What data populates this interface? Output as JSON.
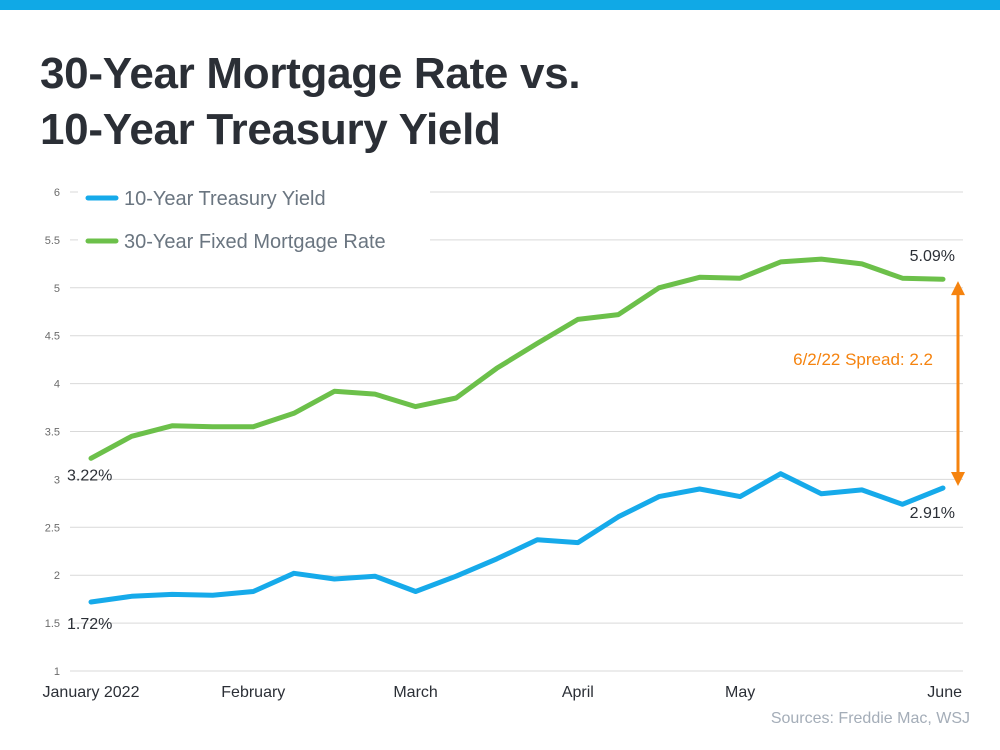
{
  "title": {
    "line1": "30-Year Mortgage Rate vs.",
    "line2": "10-Year Treasury Yield"
  },
  "source": "Sources: Freddie Mac, WSJ",
  "colors": {
    "accent_bar": "#10a9e6",
    "treasury": "#16aaea",
    "mortgage": "#6cc04a",
    "spread": "#f5830f",
    "text": "#2b2f36",
    "axis_text": "#6b6b6b"
  },
  "chart_data": {
    "type": "line",
    "ylim": [
      1,
      6
    ],
    "yticks": [
      "1",
      "1.5",
      "2",
      "2.5",
      "3",
      "3.5",
      "4",
      "4.5",
      "5",
      "5.5",
      "6"
    ],
    "grid": true,
    "legend_placement": "top-left",
    "x_month_labels": [
      "January 2022",
      "February",
      "March",
      "April",
      "May",
      "June"
    ],
    "x_month_label_index": [
      0,
      4,
      8,
      12,
      16,
      20.5
    ],
    "x_count": 22,
    "series": [
      {
        "name": "10-Year Treasury Yield",
        "color": "#16aaea",
        "values": [
          1.72,
          1.78,
          1.8,
          1.79,
          1.83,
          2.02,
          1.96,
          1.99,
          1.83,
          1.99,
          2.17,
          2.37,
          2.34,
          2.61,
          2.82,
          2.9,
          2.82,
          3.06,
          2.85,
          2.89,
          2.74,
          2.91
        ]
      },
      {
        "name": "30-Year Fixed Mortgage Rate",
        "color": "#6cc04a",
        "values": [
          3.22,
          3.45,
          3.56,
          3.55,
          3.55,
          3.69,
          3.92,
          3.89,
          3.76,
          3.85,
          4.16,
          4.42,
          4.67,
          4.72,
          5.0,
          5.11,
          5.1,
          5.27,
          5.3,
          5.25,
          5.1,
          5.09
        ]
      }
    ],
    "annotations": {
      "mortgage_start": "3.22%",
      "mortgage_end": "5.09%",
      "treasury_start": "1.72%",
      "treasury_end": "2.91%",
      "spread": "6/2/22 Spread: 2.2"
    }
  }
}
